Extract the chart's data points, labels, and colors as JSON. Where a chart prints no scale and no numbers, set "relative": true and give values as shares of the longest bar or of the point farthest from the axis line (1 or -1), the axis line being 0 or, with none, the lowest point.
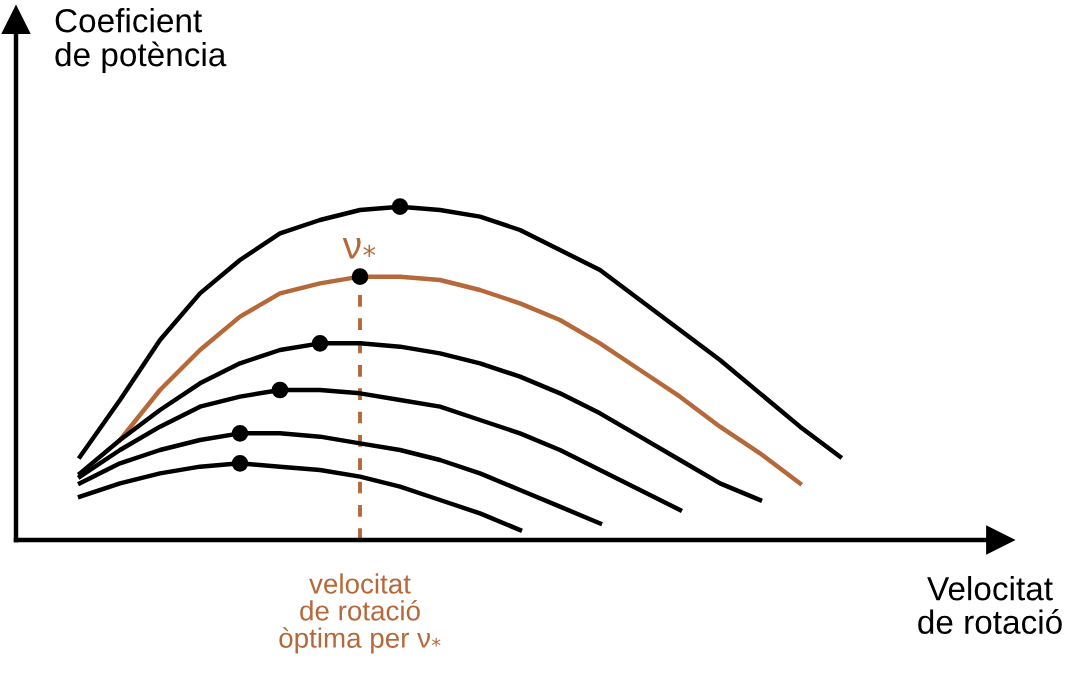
{
  "chart_data": {
    "type": "line",
    "relative": true,
    "xlabel": "Velocitat\nde rotació",
    "ylabel": "Coeficient\nde potència",
    "categories": [
      null,
      null,
      null,
      null,
      null,
      null,
      null,
      null,
      null,
      null,
      null,
      null,
      null,
      null,
      null,
      null,
      null,
      null,
      null,
      null
    ],
    "series": [
      {
        "color": "#000000",
        "values": [
          0.25,
          0.42,
          0.6,
          0.74,
          0.84,
          0.92,
          0.96,
          0.99,
          1.0,
          0.99,
          0.97,
          0.93,
          0.87,
          0.81,
          0.72,
          0.63,
          0.54,
          0.44,
          0.34,
          0.25
        ]
      },
      {
        "name": "ν$_{*}$",
        "color": "#b5693a",
        "values": [
          null,
          0.3,
          0.45,
          0.57,
          0.67,
          0.74,
          0.77,
          0.79,
          0.79,
          0.78,
          0.75,
          0.71,
          0.66,
          0.59,
          0.51,
          0.43,
          0.34,
          0.26,
          0.17,
          null
        ]
      },
      {
        "color": "#000000",
        "values": [
          0.2,
          0.3,
          0.39,
          0.47,
          0.53,
          0.57,
          0.59,
          0.59,
          0.58,
          0.56,
          0.53,
          0.49,
          0.44,
          0.38,
          0.31,
          0.24,
          0.17,
          0.12,
          null,
          null
        ]
      },
      {
        "color": "#000000",
        "values": [
          0.19,
          0.27,
          0.34,
          0.4,
          0.43,
          0.45,
          0.45,
          0.44,
          0.42,
          0.4,
          0.36,
          0.32,
          0.27,
          0.21,
          0.15,
          0.09,
          null,
          null,
          null,
          null
        ]
      },
      {
        "color": "#000000",
        "values": [
          0.17,
          0.23,
          0.27,
          0.3,
          0.32,
          0.32,
          0.31,
          0.29,
          0.27,
          0.24,
          0.2,
          0.15,
          0.1,
          0.05,
          null,
          null,
          null,
          null,
          null,
          null
        ]
      },
      {
        "color": "#000000",
        "values": [
          0.13,
          0.17,
          0.2,
          0.22,
          0.23,
          0.22,
          0.21,
          0.19,
          0.16,
          0.12,
          0.08,
          0.03,
          null,
          null,
          null,
          null,
          null,
          null,
          null,
          null
        ]
      }
    ],
    "annotations": [
      "velocitat\nde rotació\nòptima per ν$_{*}$"
    ],
    "legend": false
  }
}
